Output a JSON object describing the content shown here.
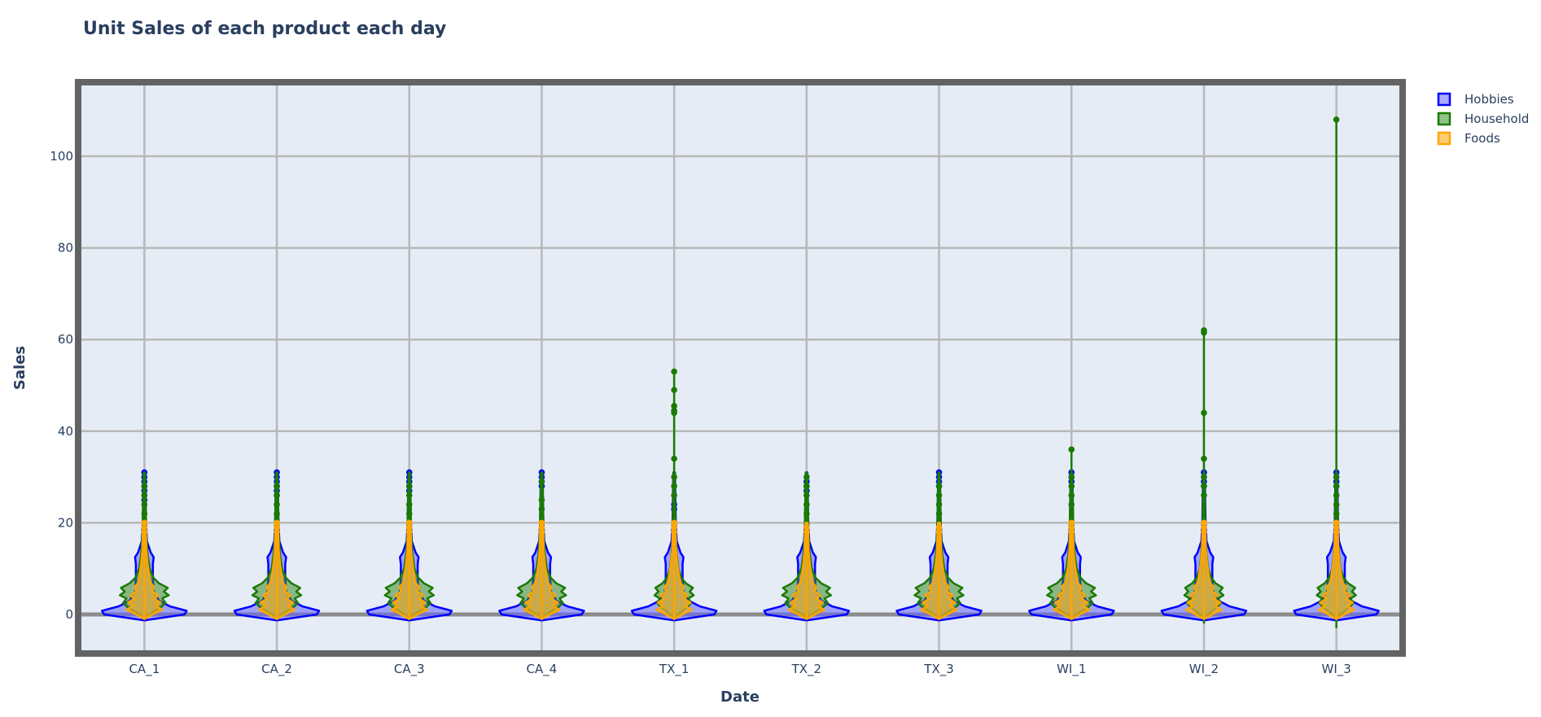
{
  "chart_data": {
    "type": "violin",
    "title": "Unit Sales of each product each day",
    "xlabel": "Date",
    "ylabel": "Sales",
    "categories": [
      "CA_1",
      "CA_2",
      "CA_3",
      "CA_4",
      "TX_1",
      "TX_2",
      "TX_3",
      "WI_1",
      "WI_2",
      "WI_3"
    ],
    "ylim": [
      -9,
      116
    ],
    "yticks": [
      0,
      20,
      40,
      60,
      80,
      100
    ],
    "grid": true,
    "legend_position": "top-right",
    "series": [
      {
        "name": "Hobbies",
        "color": "#0000ff",
        "fill": "rgba(100,100,255,0.55)",
        "max": [
          31,
          31,
          31,
          31,
          24,
          29,
          31,
          31,
          31,
          31
        ],
        "min": [
          0,
          0,
          0,
          0,
          0,
          0,
          0,
          0,
          0,
          0
        ],
        "outliers": [
          [
            31,
            30,
            29,
            28,
            27,
            26,
            25
          ],
          [
            31,
            30,
            29,
            28,
            27,
            26
          ],
          [
            31,
            30,
            29,
            28,
            27
          ],
          [
            31,
            30,
            29,
            28
          ],
          [
            24,
            23
          ],
          [
            29,
            28,
            27
          ],
          [
            31,
            30,
            29,
            28
          ],
          [
            31,
            30,
            29
          ],
          [
            31,
            30,
            29,
            28
          ],
          [
            31,
            30,
            29,
            28
          ]
        ]
      },
      {
        "name": "Household",
        "color": "#1a7a00",
        "fill": "rgba(60,140,40,0.55)",
        "max": [
          31,
          30,
          30,
          30,
          53,
          30,
          30,
          36,
          62,
          108
        ],
        "min": [
          0,
          0,
          0,
          0,
          0,
          0,
          0,
          0,
          -2,
          -3
        ],
        "outliers": [
          [
            28,
            26,
            24,
            22
          ],
          [
            28,
            26,
            24,
            22
          ],
          [
            28,
            26,
            24,
            22
          ],
          [
            29,
            25,
            23
          ],
          [
            53,
            49,
            45.5,
            44.5,
            44,
            34,
            30,
            28,
            26
          ],
          [
            30,
            28,
            26,
            24,
            22
          ],
          [
            28,
            26,
            24,
            22
          ],
          [
            36,
            30,
            28,
            26,
            24
          ],
          [
            62,
            61.5,
            44,
            34,
            30,
            28,
            26
          ],
          [
            108,
            30,
            28,
            26,
            24,
            22
          ]
        ]
      },
      {
        "name": "Foods",
        "color": "#ffa500",
        "fill": "rgba(255,180,40,0.65)",
        "max": [
          20,
          20,
          20,
          20,
          20,
          19,
          19,
          20,
          20,
          20
        ],
        "min": [
          0,
          0,
          0,
          0,
          0,
          0,
          0,
          0,
          0,
          0
        ],
        "outliers": [
          [
            20,
            19,
            18
          ],
          [
            20,
            19,
            18
          ],
          [
            20,
            19,
            18
          ],
          [
            20,
            19,
            18
          ],
          [
            20,
            19,
            18
          ],
          [
            19,
            18
          ],
          [
            19,
            18
          ],
          [
            20,
            19,
            18
          ],
          [
            20,
            19,
            18
          ],
          [
            20,
            19,
            18
          ]
        ]
      }
    ]
  }
}
